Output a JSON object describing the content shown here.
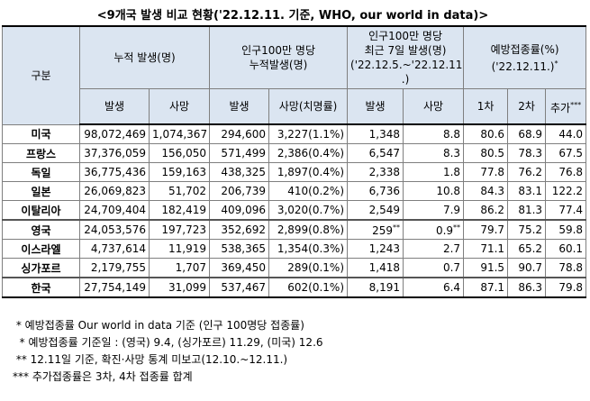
{
  "title": "<9개국 발생 비교 현황('22.12.11. 기준, WHO, our world in data)>",
  "table": {
    "header_top": [
      {
        "text": "구분",
        "rowspan": 2,
        "colspan": 1
      },
      {
        "text": "누적 발생(명)",
        "rowspan": 1,
        "colspan": 2
      },
      {
        "text": "인구100만 명당\n누적발생(명)",
        "rowspan": 1,
        "colspan": 2
      },
      {
        "text": "인구100만 명당\n최근 7일 발생(명)\n('22.12.5.~'22.12.11\n.)",
        "rowspan": 1,
        "colspan": 2
      },
      {
        "text": "예방접종률(%)\n('22.12.11.)",
        "mark": "*",
        "rowspan": 1,
        "colspan": 3
      }
    ],
    "header_sub": [
      {
        "text": "발생"
      },
      {
        "text": "사망"
      },
      {
        "text": "발생"
      },
      {
        "text": "사망(치명률)"
      },
      {
        "text": "발생"
      },
      {
        "text": "사망"
      },
      {
        "text": "1차"
      },
      {
        "text": "2차"
      },
      {
        "text": "추가",
        "mark": "***"
      }
    ],
    "rows": [
      [
        "미국",
        "98,072,469",
        "1,074,367",
        "294,600",
        "3,227(1.1%)",
        "1,348",
        "8.8",
        "80.6",
        "68.9",
        "44.0"
      ],
      [
        "프랑스",
        "37,376,059",
        "156,050",
        "571,499",
        "2,386(0.4%)",
        "6,547",
        "8.3",
        "80.5",
        "78.3",
        "67.5"
      ],
      [
        "독일",
        "36,775,436",
        "159,163",
        "438,325",
        "1,897(0.4%)",
        "2,338",
        "1.8",
        "77.8",
        "76.2",
        "76.8"
      ],
      [
        "일본",
        "26,069,823",
        "51,702",
        "206,739",
        "410(0.2%)",
        "6,736",
        "10.8",
        "84.3",
        "83.1",
        "122.2"
      ],
      [
        "이탈리아",
        "24,709,404",
        "182,419",
        "409,096",
        "3,020(0.7%)",
        "2,549",
        "7.9",
        "86.2",
        "81.3",
        "77.4"
      ],
      [
        "영국",
        "24,053,576",
        "197,723",
        "352,692",
        "2,899(0.8%)",
        {
          "text": "259",
          "mark": "**"
        },
        {
          "text": "0.9",
          "mark": "**"
        },
        "79.7",
        "75.2",
        "59.8"
      ],
      [
        "이스라엘",
        "4,737,614",
        "11,919",
        "538,365",
        "1,354(0.3%)",
        "1,243",
        "2.7",
        "71.1",
        "65.2",
        "60.1"
      ],
      [
        "싱가포르",
        "2,179,755",
        "1,707",
        "369,450",
        "289(0.1%)",
        "1,418",
        "0.7",
        "91.5",
        "90.7",
        "78.8"
      ],
      [
        "한국",
        "27,754,149",
        "31,099",
        "537,467",
        "602(0.1%)",
        "8,191",
        "6.4",
        "87.1",
        "86.3",
        "79.8"
      ]
    ]
  },
  "notes": [
    " * 예방접종률 Our world in data 기준 (인구 100명당 접종률)",
    "  * 예방접종률 기준일 : (영국) 9.4, (싱가포르) 11.29, (미국) 12.6",
    " ** 12.11일 기준, 확진·사망 통계 미보고(12.10.~12.11.)",
    "*** 추가접종률은 3차, 4차 접종률 합계"
  ]
}
